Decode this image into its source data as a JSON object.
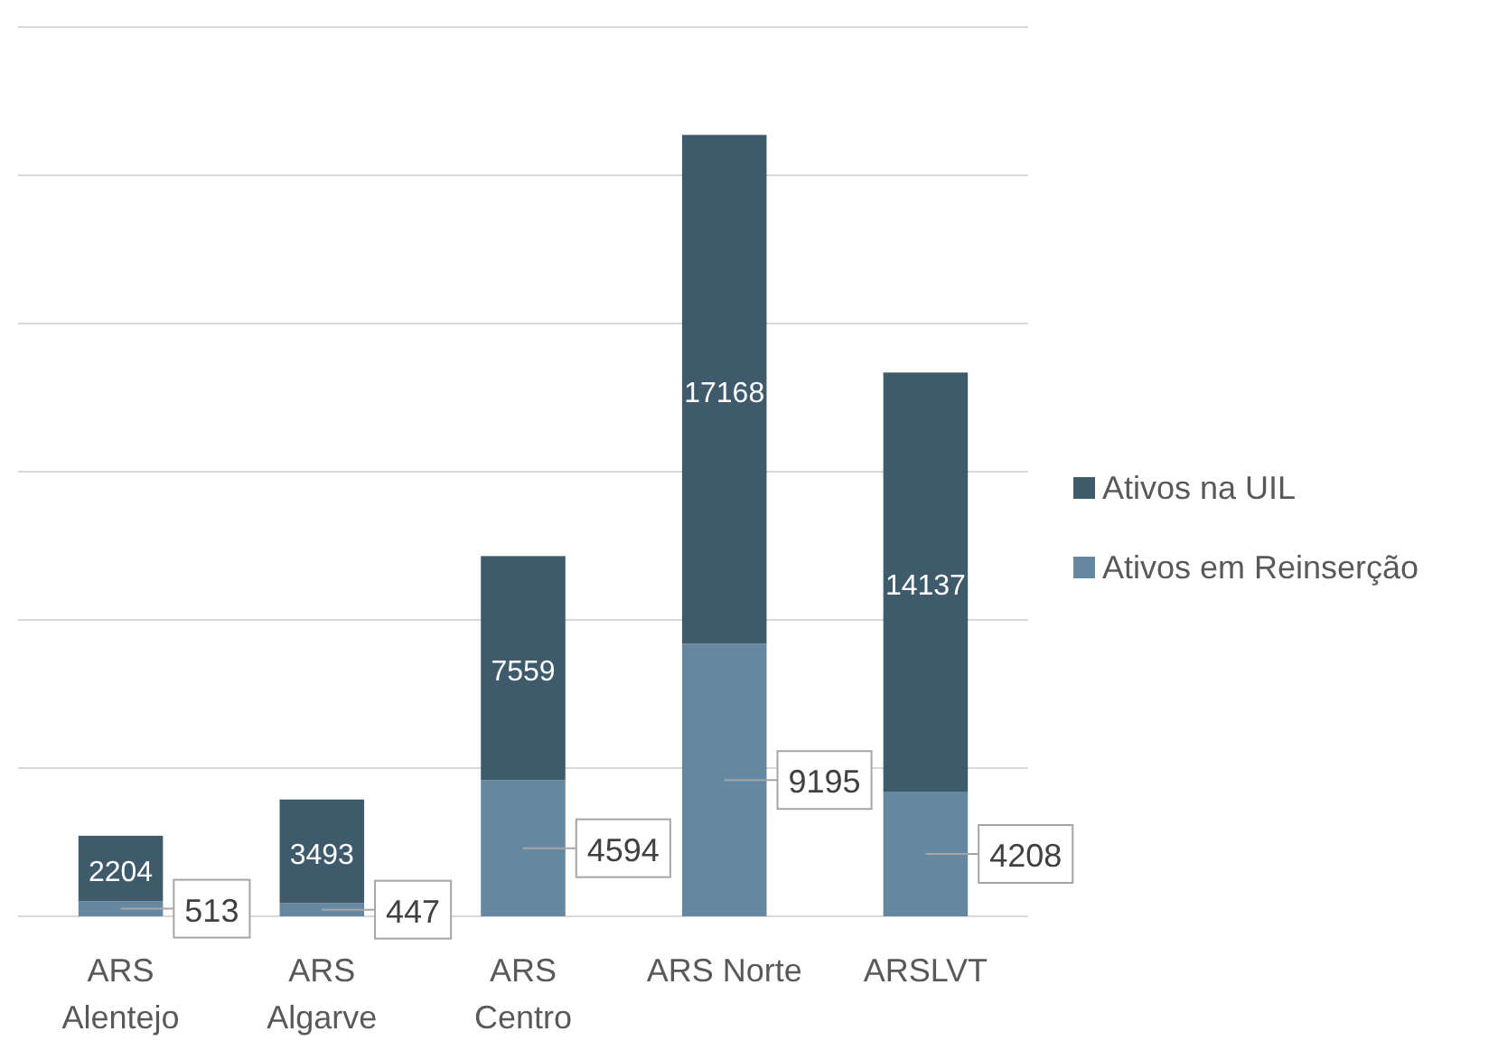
{
  "chart_data": {
    "type": "bar",
    "stacked": true,
    "categories": [
      "ARS Alentejo",
      "ARS Algarve",
      "ARS Centro",
      "ARS Norte",
      "ARSLVT"
    ],
    "series": [
      {
        "name": "Ativos em Reinserção",
        "color": "#6588a0",
        "values": [
          513,
          447,
          4594,
          9195,
          4208
        ]
      },
      {
        "name": "Ativos na  UIL",
        "color": "#3e5a6b",
        "values": [
          2204,
          3493,
          7559,
          17168,
          14137
        ]
      }
    ],
    "ylim": [
      0,
      30000
    ],
    "yticks": [
      {
        "value": 0,
        "label": null
      },
      {
        "value": 5000,
        "label": null
      },
      {
        "value": 10000,
        "label": null
      },
      {
        "value": 15000,
        "label": null
      },
      {
        "value": 20000,
        "label": null
      },
      {
        "value": 25000,
        "label": null
      },
      {
        "value": 30000,
        "label": null
      }
    ],
    "tick_labels": "x",
    "grid": "y",
    "legend": "right",
    "data_labels": true
  }
}
